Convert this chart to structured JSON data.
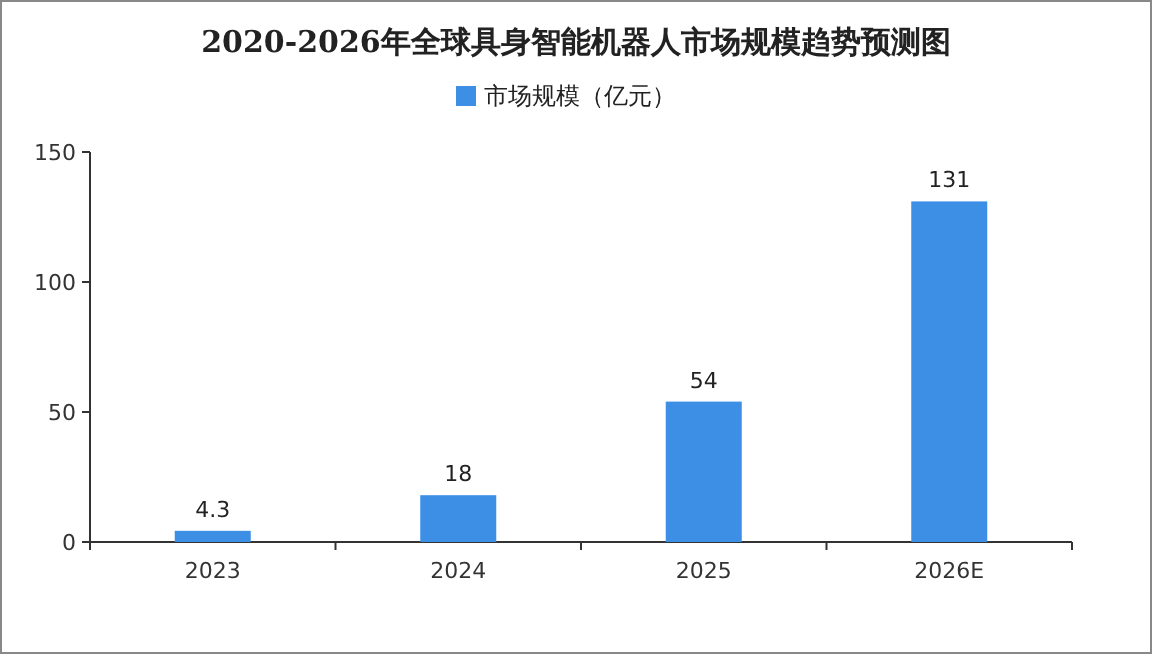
{
  "chart_data": {
    "type": "bar",
    "title": "2020-2026年全球具身智能机器人市场规模趋势预测图",
    "categories": [
      "2023",
      "2024",
      "2025",
      "2026E"
    ],
    "series": [
      {
        "name": "市场规模（亿元）",
        "color": "#3d8fe6",
        "values": [
          4.3,
          18,
          54,
          131
        ]
      }
    ],
    "ylim": [
      0,
      150
    ],
    "yticks": [
      0,
      50,
      100,
      150
    ],
    "data_labels": true,
    "legend": "top"
  }
}
